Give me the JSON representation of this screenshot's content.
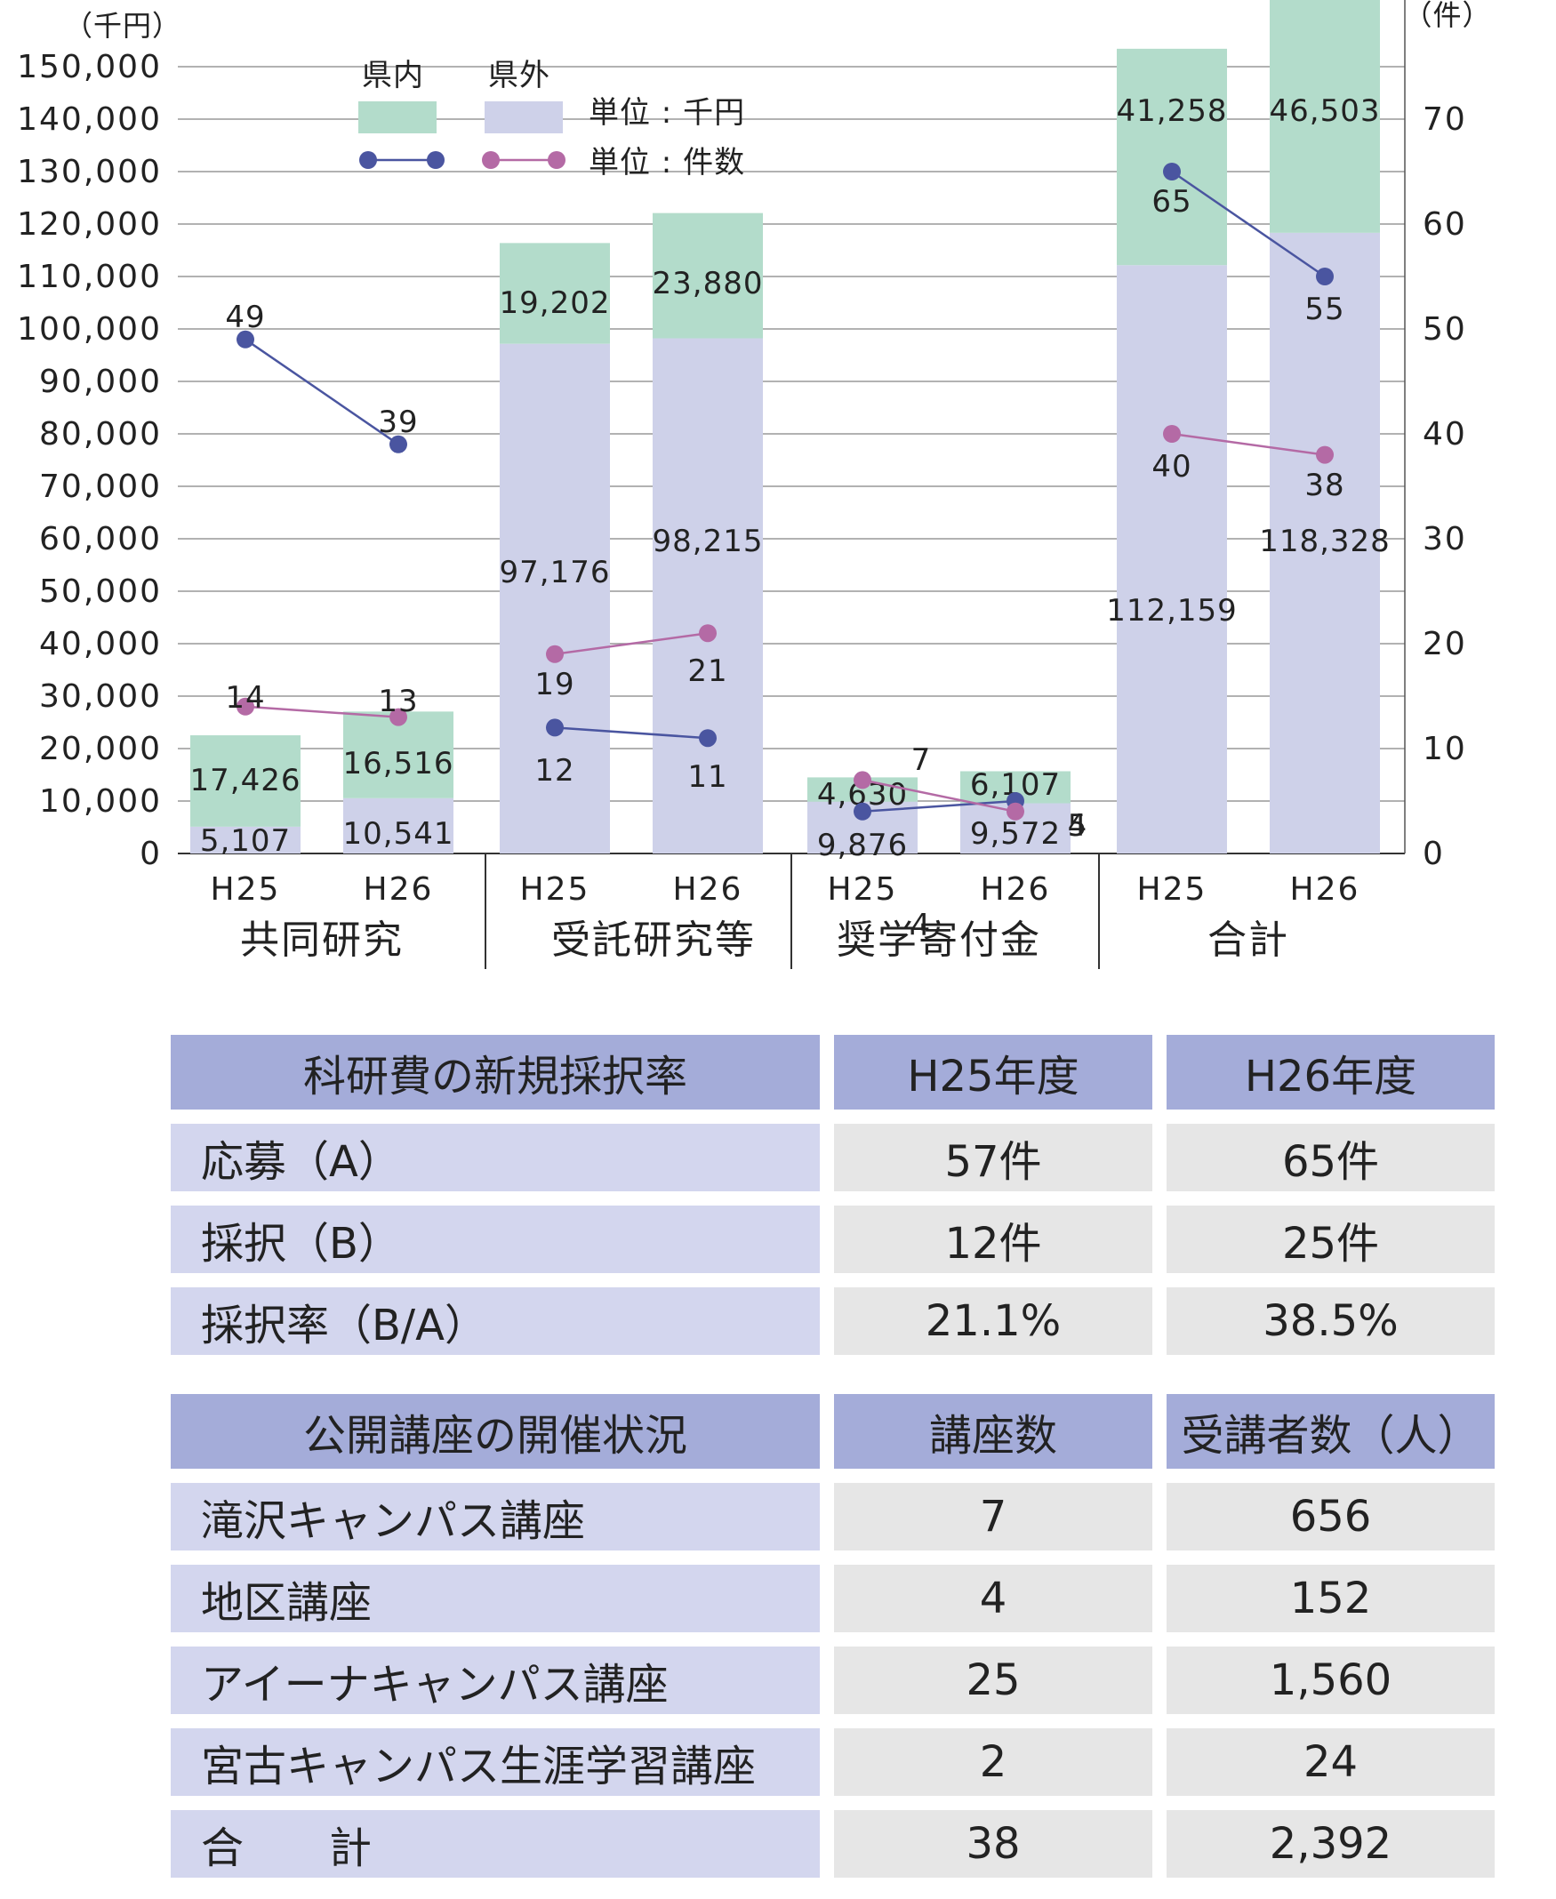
{
  "chart_data": {
    "type": "bar",
    "bar_stack": "stacked",
    "y_left_unit": "（千円）",
    "y_right_unit": "（件）",
    "y_left_ticks": [
      "0",
      "10,000",
      "20,000",
      "30,000",
      "40,000",
      "50,000",
      "60,000",
      "70,000",
      "80,000",
      "90,000",
      "100,000",
      "110,000",
      "120,000",
      "130,000",
      "140,000",
      "150,000"
    ],
    "y_right_ticks": [
      "0",
      "10",
      "20",
      "30",
      "40",
      "50",
      "60",
      "70"
    ],
    "ylim_left": [
      0,
      150000
    ],
    "ylim_right": [
      0,
      75
    ],
    "legend": {
      "in_pref": "県内",
      "out_pref": "県外",
      "unit_amount": "単位 : 千円",
      "unit_count": "単位 : 件数"
    },
    "groups": [
      {
        "label": "共同研究",
        "years": [
          {
            "x": "H25",
            "in_pref": 17426,
            "out_pref": 5107,
            "in_label": "17,426",
            "out_label": "5,107",
            "in_count": 49,
            "out_count": 14
          },
          {
            "x": "H26",
            "in_pref": 16516,
            "out_pref": 10541,
            "in_label": "16,516",
            "out_label": "10,541",
            "in_count": 39,
            "out_count": 13
          }
        ]
      },
      {
        "label": "受託研究等",
        "years": [
          {
            "x": "H25",
            "in_pref": 19202,
            "out_pref": 97176,
            "in_label": "19,202",
            "out_label": "97,176",
            "in_count": 12,
            "out_count": 19
          },
          {
            "x": "H26",
            "in_pref": 23880,
            "out_pref": 98215,
            "in_label": "23,880",
            "out_label": "98,215",
            "in_count": 11,
            "out_count": 21
          }
        ]
      },
      {
        "label": "奨学寄付金",
        "years": [
          {
            "x": "H25",
            "in_pref": 4630,
            "out_pref": 9876,
            "in_label": "4,630",
            "out_label": "9,876",
            "in_count": 4,
            "out_count": 7
          },
          {
            "x": "H26",
            "in_pref": 6107,
            "out_pref": 9572,
            "in_label": "6,107",
            "out_label": "9,572",
            "in_count": 5,
            "out_count": 4
          }
        ]
      },
      {
        "label": "合計",
        "years": [
          {
            "x": "H25",
            "in_pref": 41258,
            "out_pref": 112159,
            "in_label": "41,258",
            "out_label": "112,159",
            "in_count": 65,
            "out_count": 40
          },
          {
            "x": "H26",
            "in_pref": 46503,
            "out_pref": 118328,
            "in_label": "46,503",
            "out_label": "118,328",
            "in_count": 55,
            "out_count": 38
          }
        ]
      }
    ],
    "colors": {
      "in_pref_bar": "#b3dccb",
      "out_pref_bar": "#ced1e9",
      "in_pref_line": "#4a55a0",
      "out_pref_line": "#b46aa5",
      "grid": "#999999"
    },
    "grid": true,
    "legend_position": "top-left"
  },
  "table1": {
    "header": [
      "科研費の新規採択率",
      "H25年度",
      "H26年度"
    ],
    "rows": [
      [
        "応募（A）",
        "57件",
        "65件"
      ],
      [
        "採択（B）",
        "12件",
        "25件"
      ],
      [
        "採択率（B/A）",
        "21.1%",
        "38.5%"
      ]
    ]
  },
  "table2": {
    "header": [
      "公開講座の開催状況",
      "講座数",
      "受講者数（人）"
    ],
    "rows": [
      [
        "滝沢キャンパス講座",
        "7",
        "656"
      ],
      [
        "地区講座",
        "4",
        "152"
      ],
      [
        "アイーナキャンパス講座",
        "25",
        "1,560"
      ],
      [
        "宮古キャンパス生涯学習講座",
        "2",
        "24"
      ],
      [
        "合　　計",
        "38",
        "2,392"
      ]
    ]
  }
}
